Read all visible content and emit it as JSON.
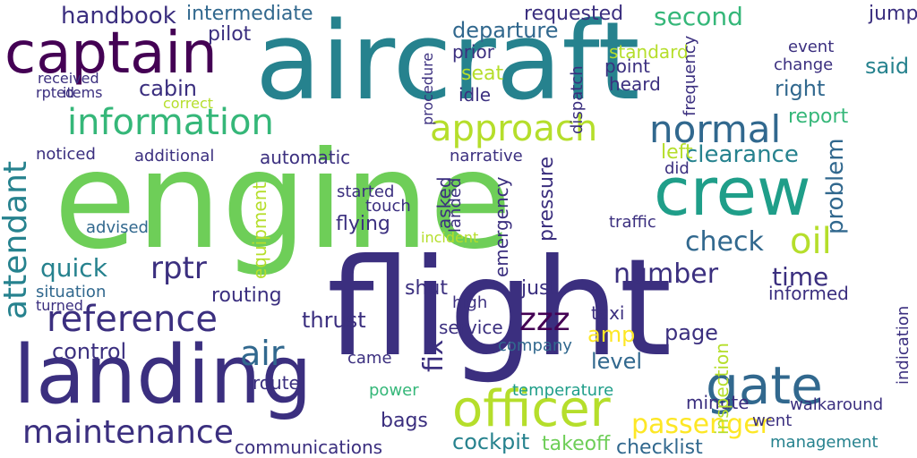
{
  "palette": {
    "dark_purple": "#440154",
    "indigo": "#3b2f7f",
    "blue": "#31688e",
    "teal": "#26828e",
    "sea_green": "#1f9e89",
    "green": "#35b779",
    "light_green": "#6ece58",
    "lime": "#b5de2b",
    "yellow": "#fde725"
  },
  "words": [
    {
      "text": "engine",
      "color": "light_green"
    },
    {
      "text": "flight",
      "color": "indigo"
    },
    {
      "text": "aircraft",
      "color": "teal"
    },
    {
      "text": "landing",
      "color": "indigo"
    },
    {
      "text": "captain",
      "color": "dark_purple"
    },
    {
      "text": "crew",
      "color": "sea_green"
    },
    {
      "text": "gate",
      "color": "blue"
    },
    {
      "text": "officer",
      "color": "lime"
    },
    {
      "text": "maintenance",
      "color": "indigo"
    },
    {
      "text": "information",
      "color": "green"
    },
    {
      "text": "approach",
      "color": "lime"
    },
    {
      "text": "normal",
      "color": "blue"
    },
    {
      "text": "reference",
      "color": "indigo"
    },
    {
      "text": "attendant",
      "color": "teal"
    },
    {
      "text": "passenger",
      "color": "yellow"
    },
    {
      "text": "handbook",
      "color": "indigo"
    },
    {
      "text": "intermediate",
      "color": "blue"
    },
    {
      "text": "departure",
      "color": "blue"
    },
    {
      "text": "requested",
      "color": "indigo"
    },
    {
      "text": "second",
      "color": "green"
    },
    {
      "text": "oil",
      "color": "lime"
    },
    {
      "text": "check",
      "color": "blue"
    },
    {
      "text": "quick",
      "color": "teal"
    },
    {
      "text": "rptr",
      "color": "indigo"
    },
    {
      "text": "cabin",
      "color": "indigo"
    },
    {
      "text": "control",
      "color": "indigo"
    },
    {
      "text": "number",
      "color": "indigo"
    },
    {
      "text": "time",
      "color": "indigo"
    },
    {
      "text": "clearance",
      "color": "teal"
    },
    {
      "text": "problem",
      "color": "blue"
    },
    {
      "text": "zzz",
      "color": "dark_purple"
    },
    {
      "text": "fix",
      "color": "indigo"
    },
    {
      "text": "air",
      "color": "blue"
    },
    {
      "text": "thrust",
      "color": "indigo"
    },
    {
      "text": "cockpit",
      "color": "teal"
    },
    {
      "text": "checklist",
      "color": "blue"
    },
    {
      "text": "communications",
      "color": "indigo"
    },
    {
      "text": "management",
      "color": "teal"
    },
    {
      "text": "takeoff",
      "color": "light_green"
    },
    {
      "text": "report",
      "color": "green"
    },
    {
      "text": "right",
      "color": "blue"
    },
    {
      "text": "said",
      "color": "teal"
    },
    {
      "text": "pilot",
      "color": "indigo"
    },
    {
      "text": "jump",
      "color": "indigo"
    },
    {
      "text": "flying",
      "color": "indigo"
    },
    {
      "text": "traffic",
      "color": "indigo"
    },
    {
      "text": "seat",
      "color": "lime"
    },
    {
      "text": "standard",
      "color": "lime"
    },
    {
      "text": "emergency",
      "color": "indigo"
    },
    {
      "text": "pressure",
      "color": "indigo"
    },
    {
      "text": "narrative",
      "color": "indigo"
    },
    {
      "text": "automatic",
      "color": "indigo"
    },
    {
      "text": "additional",
      "color": "indigo"
    },
    {
      "text": "noticed",
      "color": "indigo"
    },
    {
      "text": "advised",
      "color": "blue"
    },
    {
      "text": "routing",
      "color": "indigo"
    },
    {
      "text": "situation",
      "color": "blue"
    },
    {
      "text": "service",
      "color": "indigo"
    },
    {
      "text": "company",
      "color": "blue"
    },
    {
      "text": "level",
      "color": "blue"
    },
    {
      "text": "temperature",
      "color": "sea_green"
    },
    {
      "text": "bags",
      "color": "indigo"
    },
    {
      "text": "power",
      "color": "green"
    },
    {
      "text": "minute",
      "color": "indigo"
    },
    {
      "text": "page",
      "color": "indigo"
    },
    {
      "text": "informed",
      "color": "indigo"
    },
    {
      "text": "received",
      "color": "indigo"
    },
    {
      "text": "items",
      "color": "indigo"
    },
    {
      "text": "rpted",
      "color": "indigo"
    },
    {
      "text": "correct",
      "color": "lime"
    },
    {
      "text": "shut",
      "color": "indigo"
    },
    {
      "text": "just",
      "color": "indigo"
    },
    {
      "text": "high",
      "color": "indigo"
    },
    {
      "text": "equipment",
      "color": "lime"
    },
    {
      "text": "started",
      "color": "indigo"
    },
    {
      "text": "touch",
      "color": "indigo"
    },
    {
      "text": "asked",
      "color": "indigo"
    },
    {
      "text": "landed",
      "color": "indigo"
    },
    {
      "text": "prior",
      "color": "indigo"
    },
    {
      "text": "point",
      "color": "indigo"
    },
    {
      "text": "heard",
      "color": "indigo"
    },
    {
      "text": "idle",
      "color": "indigo"
    },
    {
      "text": "change",
      "color": "indigo"
    },
    {
      "text": "event",
      "color": "indigo"
    },
    {
      "text": "taxi",
      "color": "indigo"
    },
    {
      "text": "amp",
      "color": "yellow"
    },
    {
      "text": "route",
      "color": "indigo"
    },
    {
      "text": "came",
      "color": "indigo"
    },
    {
      "text": "went",
      "color": "indigo"
    },
    {
      "text": "walkaround",
      "color": "indigo"
    },
    {
      "text": "left",
      "color": "lime"
    },
    {
      "text": "did",
      "color": "indigo"
    },
    {
      "text": "turned",
      "color": "indigo"
    },
    {
      "text": "incident",
      "color": "lime"
    },
    {
      "text": "inspection",
      "color": "lime"
    },
    {
      "text": "procedure",
      "color": "indigo"
    },
    {
      "text": "dispatch",
      "color": "indigo"
    },
    {
      "text": "frequency",
      "color": "indigo"
    },
    {
      "text": "indication",
      "color": "indigo"
    }
  ]
}
